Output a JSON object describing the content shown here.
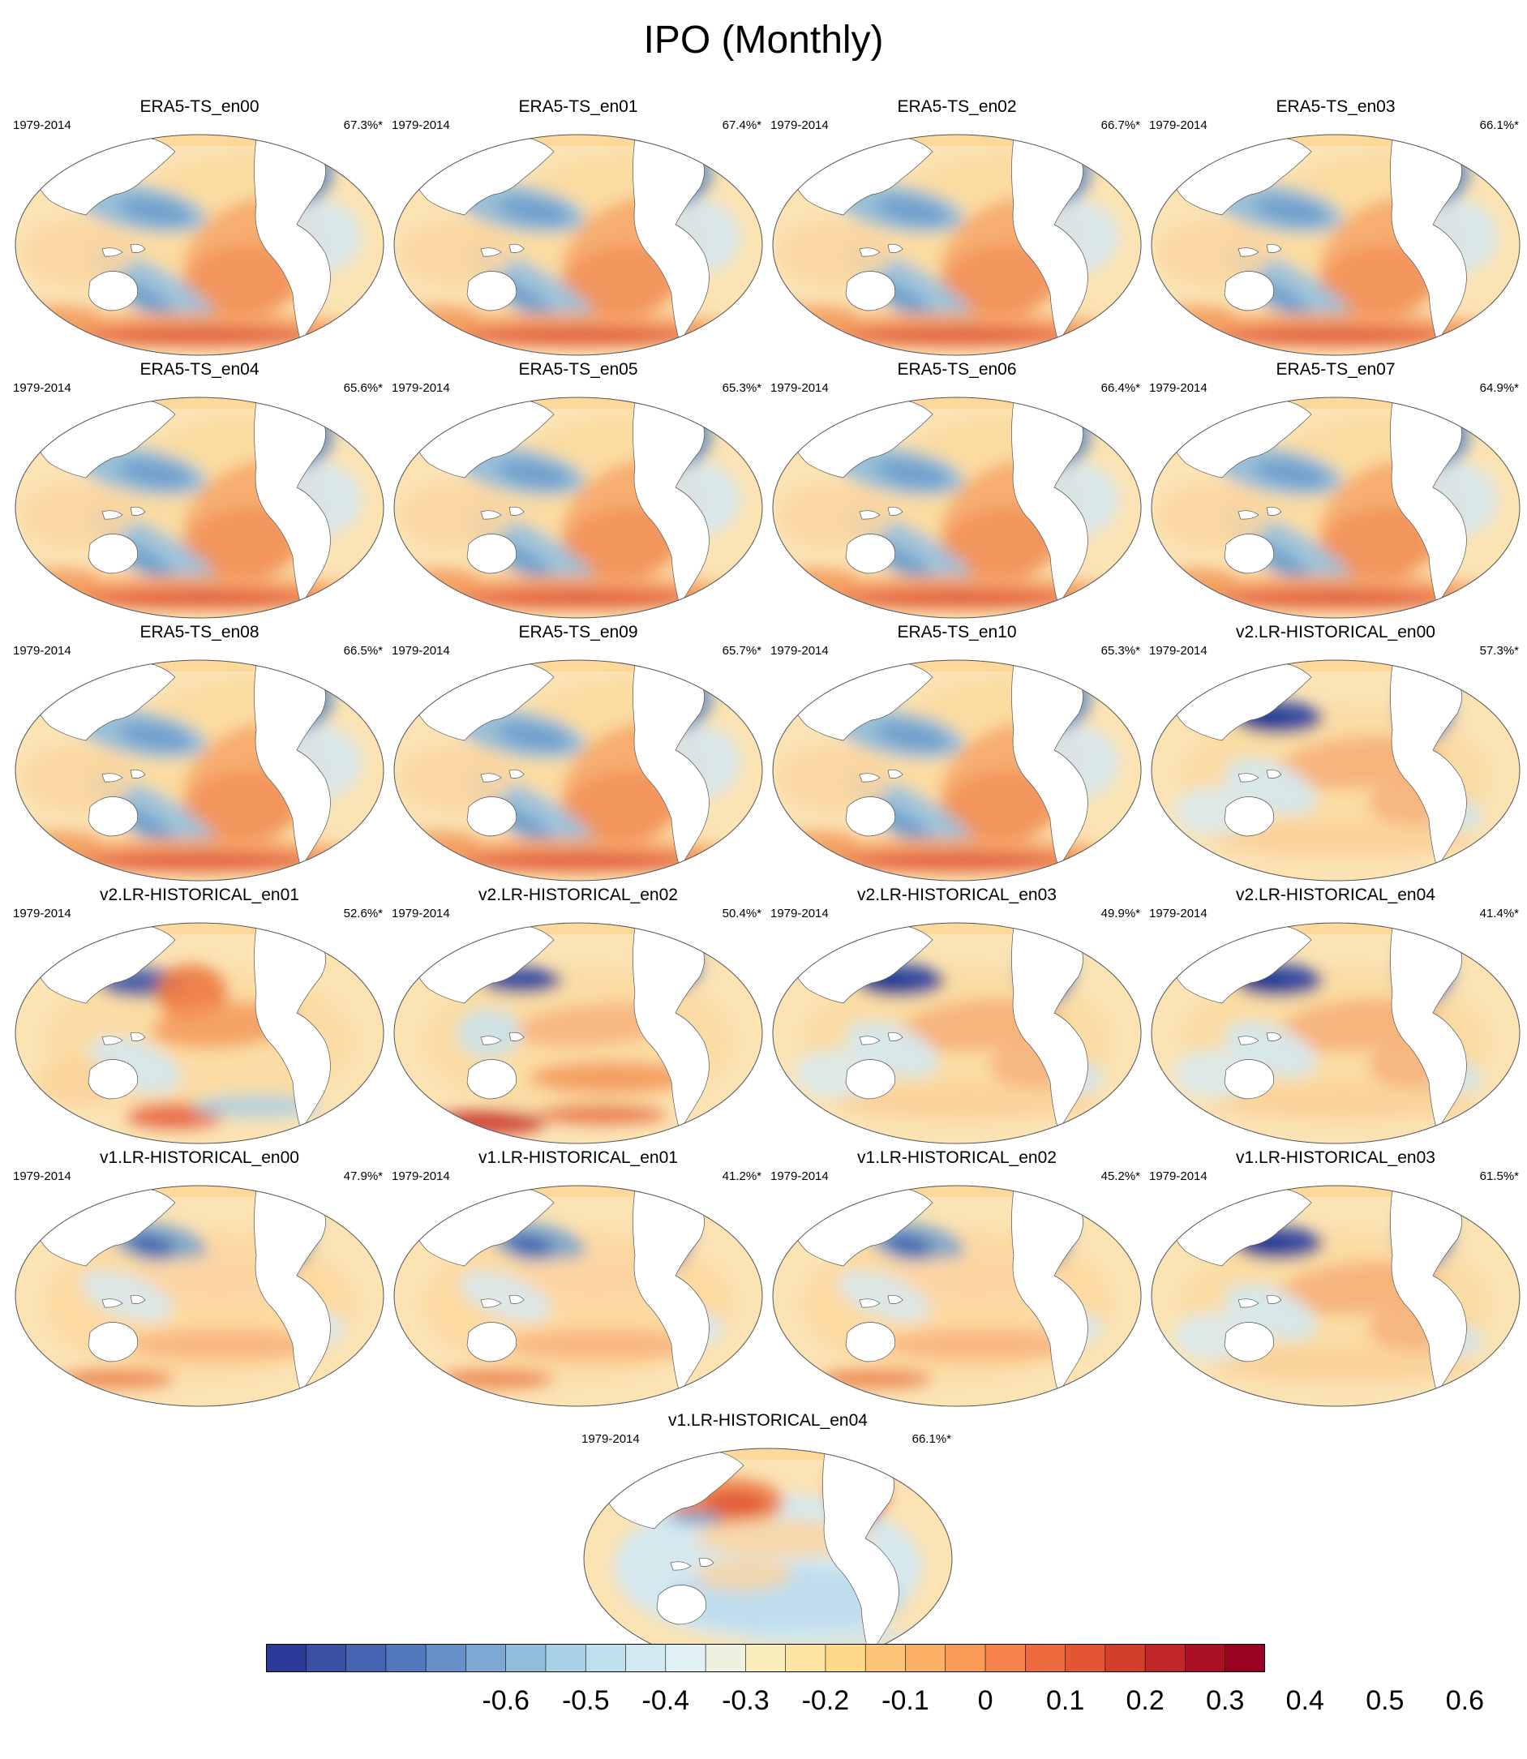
{
  "title": "IPO (Monthly)",
  "panels": [
    {
      "title": "ERA5-TS_en00",
      "period": "1979-2014",
      "pct": "67.3%*",
      "style": "era"
    },
    {
      "title": "ERA5-TS_en01",
      "period": "1979-2014",
      "pct": "67.4%*",
      "style": "era"
    },
    {
      "title": "ERA5-TS_en02",
      "period": "1979-2014",
      "pct": "66.7%*",
      "style": "era"
    },
    {
      "title": "ERA5-TS_en03",
      "period": "1979-2014",
      "pct": "66.1%*",
      "style": "era"
    },
    {
      "title": "ERA5-TS_en04",
      "period": "1979-2014",
      "pct": "65.6%*",
      "style": "era"
    },
    {
      "title": "ERA5-TS_en05",
      "period": "1979-2014",
      "pct": "65.3%*",
      "style": "era"
    },
    {
      "title": "ERA5-TS_en06",
      "period": "1979-2014",
      "pct": "66.4%*",
      "style": "era"
    },
    {
      "title": "ERA5-TS_en07",
      "period": "1979-2014",
      "pct": "64.9%*",
      "style": "era"
    },
    {
      "title": "ERA5-TS_en08",
      "period": "1979-2014",
      "pct": "66.5%*",
      "style": "era"
    },
    {
      "title": "ERA5-TS_en09",
      "period": "1979-2014",
      "pct": "65.7%*",
      "style": "era"
    },
    {
      "title": "ERA5-TS_en10",
      "period": "1979-2014",
      "pct": "65.3%*",
      "style": "era"
    },
    {
      "title": "v2.LR-HISTORICAL_en00",
      "period": "1979-2014",
      "pct": "57.3%*",
      "style": "model"
    },
    {
      "title": "v2.LR-HISTORICAL_en01",
      "period": "1979-2014",
      "pct": "52.6%*",
      "style": "model-warm"
    },
    {
      "title": "v2.LR-HISTORICAL_en02",
      "period": "1979-2014",
      "pct": "50.4%*",
      "style": "model-south"
    },
    {
      "title": "v2.LR-HISTORICAL_en03",
      "period": "1979-2014",
      "pct": "49.9%*",
      "style": "model"
    },
    {
      "title": "v2.LR-HISTORICAL_en04",
      "period": "1979-2014",
      "pct": "41.4%*",
      "style": "model"
    },
    {
      "title": "v1.LR-HISTORICAL_en00",
      "period": "1979-2014",
      "pct": "47.9%*",
      "style": "model-weak"
    },
    {
      "title": "v1.LR-HISTORICAL_en01",
      "period": "1979-2014",
      "pct": "41.2%*",
      "style": "model-weak"
    },
    {
      "title": "v1.LR-HISTORICAL_en02",
      "period": "1979-2014",
      "pct": "45.2%*",
      "style": "model-weak"
    },
    {
      "title": "v1.LR-HISTORICAL_en03",
      "period": "1979-2014",
      "pct": "61.5%*",
      "style": "model"
    },
    {
      "title": "v1.LR-HISTORICAL_en04",
      "period": "1979-2014",
      "pct": "66.1%*",
      "style": "inverted"
    }
  ],
  "colorbar": {
    "labels": [
      "-0.6",
      "-0.5",
      "-0.4",
      "-0.3",
      "-0.2",
      "-0.1",
      "0",
      "0.1",
      "0.2",
      "0.3",
      "0.4",
      "0.5",
      "0.6"
    ],
    "colors": [
      "#2b3a97",
      "#3a50a5",
      "#4565b3",
      "#5278be",
      "#6690c8",
      "#7da8d4",
      "#93bddd",
      "#a9d2e6",
      "#bee0ec",
      "#d1e9f0",
      "#e1f0f2",
      "#ecf1e0",
      "#fbedbb",
      "#fde4a2",
      "#fed98a",
      "#fdc577",
      "#fcb065",
      "#f99a56",
      "#f5824a",
      "#ee6b3f",
      "#e35535",
      "#d43f2c",
      "#c22627",
      "#ac1025",
      "#9a0223"
    ]
  }
}
